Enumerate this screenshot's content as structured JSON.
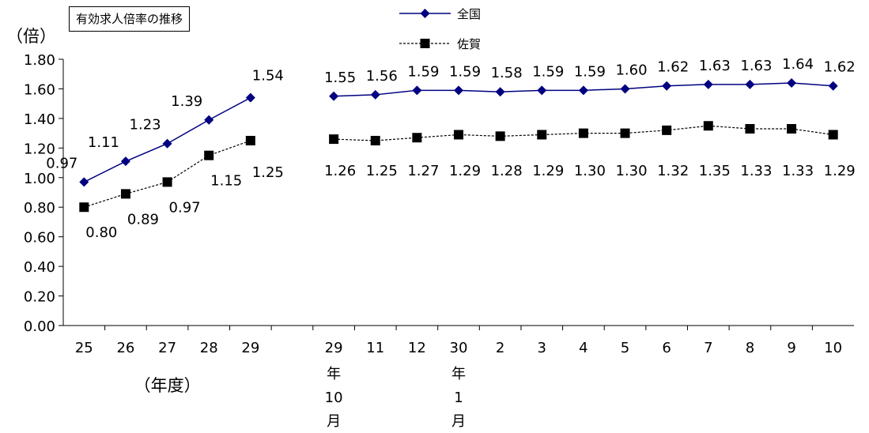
{
  "chart_data": {
    "type": "line",
    "title": "有効求人倍率の推移",
    "ylabel": "（倍）",
    "xlabel_annual": "（年度）",
    "ylim": [
      0,
      1.8
    ],
    "yticks": [
      "0.00",
      "0.20",
      "0.40",
      "0.60",
      "0.80",
      "1.00",
      "1.20",
      "1.40",
      "1.60",
      "1.80"
    ],
    "grid": false,
    "legend_position": "top-center",
    "annual": {
      "categories": [
        "25",
        "26",
        "27",
        "28",
        "29"
      ],
      "series": [
        {
          "name": "全国",
          "values": [
            0.97,
            1.11,
            1.23,
            1.39,
            1.54
          ],
          "labels": [
            "0.97",
            "1.11",
            "1.23",
            "1.39",
            "1.54"
          ]
        },
        {
          "name": "佐賀",
          "values": [
            0.8,
            0.89,
            0.97,
            1.15,
            1.25
          ],
          "labels": [
            "0.80",
            "0.89",
            "0.97",
            "1.15",
            "1.25"
          ]
        }
      ]
    },
    "monthly": {
      "categories": [
        "29",
        "11",
        "12",
        "30",
        "2",
        "3",
        "4",
        "5",
        "6",
        "7",
        "8",
        "9",
        "10"
      ],
      "category_sublabels": {
        "0": [
          "年",
          "10",
          "月"
        ],
        "3": [
          "年",
          "1",
          "月"
        ]
      },
      "series": [
        {
          "name": "全国",
          "values": [
            1.55,
            1.56,
            1.59,
            1.59,
            1.58,
            1.59,
            1.59,
            1.6,
            1.62,
            1.63,
            1.63,
            1.64,
            1.62
          ],
          "labels": [
            "1.55",
            "1.56",
            "1.59",
            "1.59",
            "1.58",
            "1.59",
            "1.59",
            "1.60",
            "1.62",
            "1.63",
            "1.63",
            "1.64",
            "1.62"
          ]
        },
        {
          "name": "佐賀",
          "values": [
            1.26,
            1.25,
            1.27,
            1.29,
            1.28,
            1.29,
            1.3,
            1.3,
            1.32,
            1.35,
            1.33,
            1.33,
            1.29
          ],
          "labels": [
            "1.26",
            "1.25",
            "1.27",
            "1.29",
            "1.28",
            "1.29",
            "1.30",
            "1.30",
            "1.32",
            "1.35",
            "1.33",
            "1.33",
            "1.29"
          ]
        }
      ]
    },
    "colors": {
      "national": "#000080",
      "saga": "#000000"
    }
  }
}
